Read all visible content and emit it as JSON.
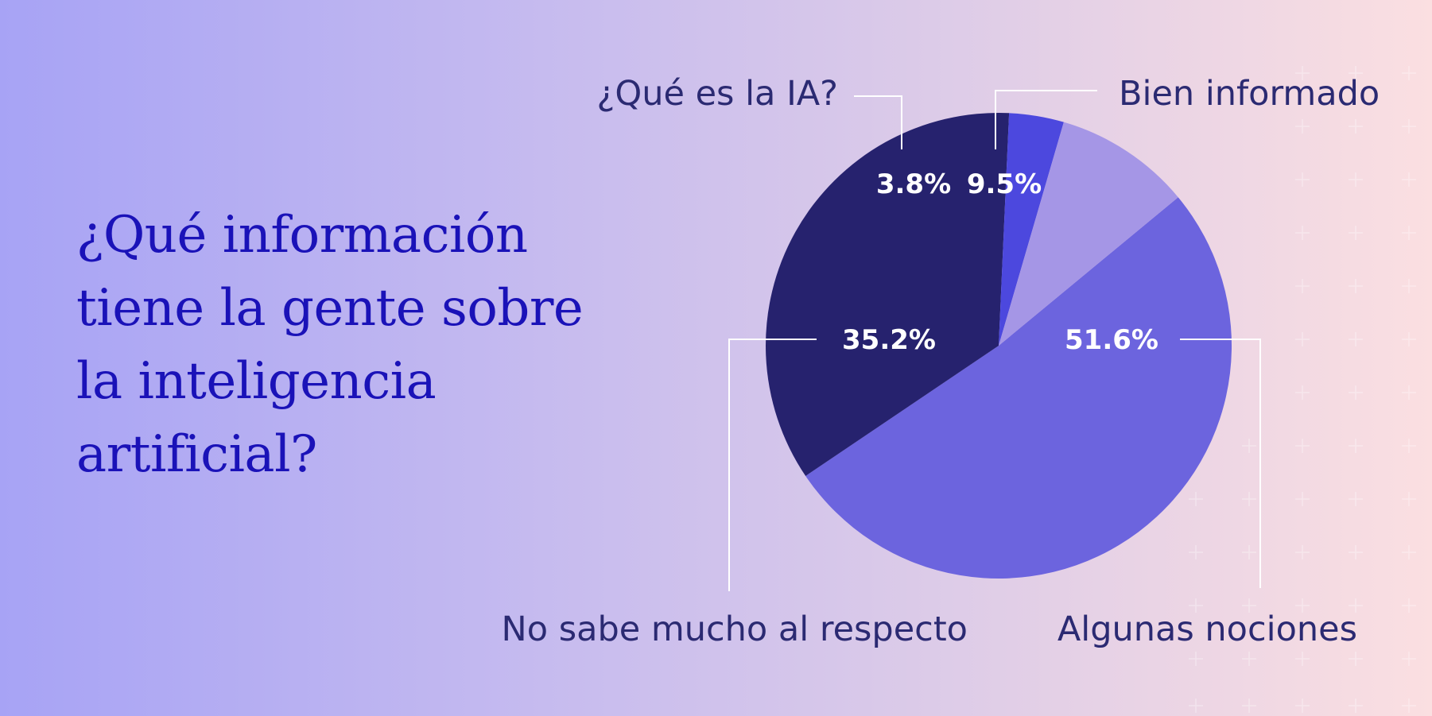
{
  "title_lines": [
    "¿Qué información",
    "tiene la gente sobre",
    "la inteligencia",
    "artificial?"
  ],
  "chart_data": {
    "type": "pie",
    "title": "¿Qué información tiene la gente sobre la inteligencia artificial?",
    "slices": [
      {
        "label": "Algunas nociones",
        "value": 51.6,
        "display": "51.6%",
        "color": "#6c64de"
      },
      {
        "label": "No sabe mucho al respecto",
        "value": 35.2,
        "display": "35.2%",
        "color": "#26226e"
      },
      {
        "label": "¿Qué es la IA?",
        "value": 3.8,
        "display": "3.8%",
        "color": "#4c48de"
      },
      {
        "label": "Bien informado",
        "value": 9.5,
        "display": "9.5%",
        "color": "#a596e6"
      }
    ]
  }
}
